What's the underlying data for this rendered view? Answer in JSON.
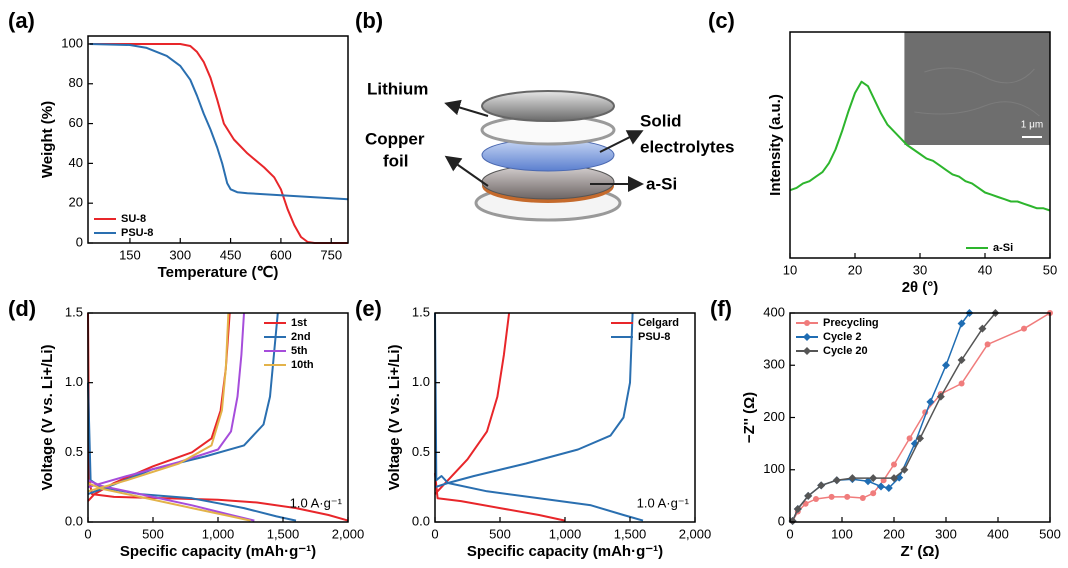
{
  "chart_data": [
    {
      "type": "line",
      "panel_label": "(a)",
      "xlabel": "Temperature (℃)",
      "ylabel": "Weight (%)",
      "xlim": [
        25,
        800
      ],
      "ylim": [
        0,
        104
      ],
      "xticks": [
        150,
        300,
        450,
        600,
        750
      ],
      "yticks": [
        0,
        20,
        40,
        60,
        80,
        100
      ],
      "legend": "lower left",
      "series": [
        {
          "name": "SU-8",
          "color": "#e8262a",
          "x": [
            30,
            150,
            300,
            330,
            350,
            370,
            390,
            410,
            430,
            460,
            500,
            550,
            580,
            600,
            620,
            640,
            660,
            680,
            700,
            800
          ],
          "values": [
            100,
            100,
            100,
            99,
            96,
            91,
            83,
            72,
            60,
            52,
            45,
            38,
            33,
            27,
            17,
            9,
            3,
            0.5,
            0,
            0
          ]
        },
        {
          "name": "PSU-8",
          "color": "#2a6fb0",
          "x": [
            30,
            150,
            200,
            260,
            300,
            330,
            350,
            370,
            390,
            410,
            425,
            440,
            450,
            470,
            500,
            600,
            700,
            800
          ],
          "values": [
            100,
            99.5,
            98,
            94,
            89,
            82,
            74,
            65,
            57,
            48,
            40,
            30,
            27,
            25.5,
            25,
            24,
            23,
            22
          ]
        }
      ]
    },
    {
      "type": "line",
      "panel_label": "(c)",
      "xlabel": "2θ (°)",
      "ylabel": "Intensity (a.u.)",
      "xlim": [
        10,
        50
      ],
      "ylim": [
        0,
        100
      ],
      "xticks": [
        10,
        20,
        30,
        40,
        50
      ],
      "yticks": [],
      "legend": "lower right",
      "inset_scale_label": "1 μm",
      "x": [
        10,
        11,
        12,
        13,
        14,
        15,
        16,
        17,
        18,
        19,
        20,
        21,
        22,
        23,
        24,
        25,
        26,
        27,
        28,
        29,
        30,
        31,
        32,
        33,
        34,
        35,
        36,
        37,
        38,
        39,
        40,
        41,
        42,
        43,
        44,
        45,
        46,
        47,
        48,
        49,
        50
      ],
      "series": [
        {
          "name": "a-Si",
          "color": "#2db52d",
          "values": [
            30,
            31,
            33,
            34,
            36,
            38,
            42,
            48,
            56,
            65,
            73,
            78,
            76,
            70,
            64,
            59,
            56,
            53,
            50,
            48,
            46,
            44,
            43,
            41,
            39,
            37,
            36,
            34,
            33,
            31,
            29,
            28,
            27,
            26,
            25,
            25,
            24,
            23,
            22,
            22,
            21
          ]
        }
      ]
    },
    {
      "type": "line",
      "panel_label": "(d)",
      "xlabel": "Specific capacity (mAh·g⁻¹)",
      "ylabel": "Voltage (V vs. Li+/Li)",
      "xlim": [
        0,
        2000
      ],
      "ylim": [
        0,
        1.5
      ],
      "legend": "upper right",
      "annotation": "1.0 A·g⁻¹",
      "xticks": [
        0,
        500,
        {
          "value": 1000,
          "label": "1,000"
        },
        {
          "value": 1500,
          "label": "1,500"
        },
        {
          "value": 2000,
          "label": "2,000"
        }
      ],
      "yticks": [
        {
          "value": 0,
          "label": "0.0"
        },
        0.5,
        {
          "value": 1,
          "label": "1.0"
        },
        1.5
      ],
      "series": [
        {
          "name": "1st",
          "color": "#e8262a",
          "x": [
            0,
            10,
            30,
            200,
            600,
            1000,
            1300,
            1600,
            1850,
            2000,
            0,
            0,
            50,
            200,
            500,
            800,
            950,
            1020,
            1060,
            1090
          ],
          "values": [
            1.5,
            0.3,
            0.2,
            0.18,
            0.17,
            0.16,
            0.14,
            0.1,
            0.05,
            0.01,
            null,
            0.15,
            0.2,
            0.28,
            0.4,
            0.5,
            0.6,
            0.8,
            1.1,
            1.5
          ]
        },
        {
          "name": "2nd",
          "color": "#2a6fb0",
          "x": [
            0,
            20,
            100,
            400,
            800,
            1200,
            1450,
            1600,
            0,
            0,
            200,
            500,
            900,
            1200,
            1350,
            1400,
            1430,
            1460
          ],
          "values": [
            1.0,
            0.3,
            0.25,
            0.2,
            0.17,
            0.1,
            0.04,
            0.01,
            null,
            0.2,
            0.27,
            0.38,
            0.47,
            0.55,
            0.7,
            0.9,
            1.2,
            1.5
          ]
        },
        {
          "name": "5th",
          "color": "#a64ddb",
          "x": [
            0,
            100,
            400,
            800,
            1100,
            1280,
            0,
            0,
            300,
            700,
            1000,
            1100,
            1150,
            1180,
            1200
          ],
          "values": [
            0.3,
            0.26,
            0.2,
            0.12,
            0.05,
            0.01,
            null,
            0.25,
            0.33,
            0.43,
            0.52,
            0.65,
            0.9,
            1.2,
            1.5
          ]
        },
        {
          "name": "10th",
          "color": "#e3b34a",
          "x": [
            0,
            100,
            400,
            800,
            1100,
            1250,
            0,
            0,
            300,
            700,
            950,
            1030,
            1060,
            1080
          ],
          "values": [
            0.28,
            0.24,
            0.18,
            0.1,
            0.04,
            0.01,
            null,
            0.22,
            0.3,
            0.42,
            0.55,
            0.8,
            1.1,
            1.5
          ]
        }
      ]
    },
    {
      "type": "line",
      "panel_label": "(e)",
      "xlabel": "Specific capacity (mAh·g⁻¹)",
      "ylabel": "Voltage (V vs. Li+/Li)",
      "xlim": [
        0,
        2000
      ],
      "ylim": [
        0,
        1.5
      ],
      "legend": "upper right",
      "annotation": "1.0 A·g⁻¹",
      "xticks": [
        0,
        500,
        {
          "value": 1000,
          "label": "1,000"
        },
        {
          "value": 1500,
          "label": "1,500"
        },
        {
          "value": 2000,
          "label": "2,000"
        }
      ],
      "yticks": [
        {
          "value": 0,
          "label": "0.0"
        },
        0.5,
        {
          "value": 1,
          "label": "1.0"
        },
        1.5
      ],
      "series": [
        {
          "name": "Celgard",
          "color": "#e8262a",
          "x": [
            0,
            20,
            200,
            500,
            800,
            1000,
            0,
            0,
            100,
            250,
            400,
            480,
            530,
            570
          ],
          "values": [
            0.35,
            0.17,
            0.15,
            0.1,
            0.05,
            0.01,
            null,
            0.2,
            0.3,
            0.45,
            0.65,
            0.9,
            1.2,
            1.5
          ]
        },
        {
          "name": "PSU-8",
          "color": "#2a6fb0",
          "x": [
            0,
            10,
            50,
            100,
            400,
            800,
            1200,
            1450,
            1600,
            0,
            0,
            100,
            300,
            700,
            1100,
            1350,
            1450,
            1500,
            1520
          ],
          "values": [
            1.5,
            0.3,
            0.33,
            0.28,
            0.22,
            0.17,
            0.12,
            0.05,
            0.01,
            null,
            0.25,
            0.28,
            0.33,
            0.42,
            0.52,
            0.62,
            0.75,
            1.0,
            1.5
          ]
        }
      ]
    },
    {
      "type": "line",
      "panel_label": "(f)",
      "xlabel": "Z' (Ω)",
      "ylabel": "−Z'' (Ω)",
      "xlim": [
        0,
        500
      ],
      "ylim": [
        0,
        400
      ],
      "xticks": [
        0,
        100,
        200,
        300,
        400,
        500
      ],
      "yticks": [
        0,
        100,
        200,
        300,
        400
      ],
      "legend": "upper left",
      "series": [
        {
          "name": "Precycling",
          "color": "#f07c7c",
          "marker": "circle",
          "x": [
            5,
            15,
            30,
            50,
            80,
            110,
            140,
            160,
            180,
            200,
            230,
            260,
            290,
            330,
            380,
            450,
            500
          ],
          "values": [
            2,
            20,
            35,
            44,
            48,
            48,
            46,
            55,
            80,
            110,
            160,
            210,
            245,
            265,
            340,
            370,
            400
          ]
        },
        {
          "name": "Cycle 2",
          "color": "#1f6db3",
          "marker": "diamond",
          "x": [
            5,
            15,
            35,
            60,
            90,
            120,
            150,
            175,
            190,
            210,
            240,
            270,
            300,
            330,
            345
          ],
          "values": [
            2,
            25,
            50,
            70,
            80,
            82,
            78,
            68,
            65,
            85,
            150,
            230,
            300,
            380,
            400
          ]
        },
        {
          "name": "Cycle 20",
          "color": "#555555",
          "marker": "diamond",
          "x": [
            5,
            15,
            35,
            60,
            90,
            120,
            160,
            200,
            220,
            250,
            290,
            330,
            370,
            395
          ],
          "values": [
            2,
            25,
            50,
            70,
            80,
            84,
            84,
            84,
            100,
            160,
            240,
            310,
            370,
            400
          ]
        }
      ]
    }
  ],
  "diagram": {
    "panel_label": "(b)",
    "lithium": "Lithium",
    "copper_foil": [
      "Copper",
      "foil"
    ],
    "solid_electrolytes": [
      "Solid",
      "electrolytes"
    ],
    "a_si": "a-Si"
  }
}
